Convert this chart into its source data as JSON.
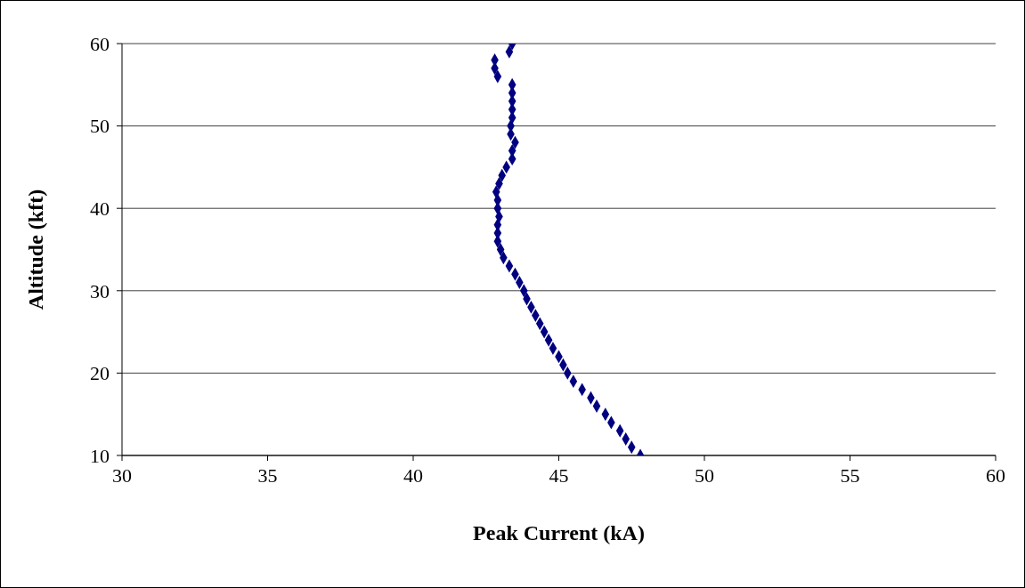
{
  "chart_data": {
    "type": "scatter",
    "xlabel": "Peak Current (kA)",
    "ylabel": "Altitude (kft)",
    "x": [
      47.8,
      47.5,
      47.3,
      47.1,
      46.8,
      46.6,
      46.3,
      46.1,
      45.8,
      45.5,
      45.3,
      45.15,
      45.0,
      44.8,
      44.65,
      44.5,
      44.35,
      44.2,
      44.05,
      43.9,
      43.8,
      43.65,
      43.5,
      43.3,
      43.1,
      43.0,
      42.9,
      42.9,
      42.9,
      42.95,
      42.9,
      42.9,
      42.85,
      42.95,
      43.05,
      43.2,
      43.4,
      43.4,
      43.5,
      43.35,
      43.35,
      43.4,
      43.4,
      43.4,
      43.4,
      43.4,
      42.9,
      42.8,
      42.8,
      43.3,
      43.4
    ],
    "values": [
      10,
      11,
      12,
      13,
      14,
      15,
      16,
      17,
      18,
      19,
      20,
      21,
      22,
      23,
      24,
      25,
      26,
      27,
      28,
      29,
      30,
      31,
      32,
      33,
      34,
      35,
      36,
      37,
      38,
      39,
      40,
      41,
      42,
      43,
      44,
      45,
      46,
      47,
      48,
      49,
      50,
      51,
      52,
      53,
      54,
      55,
      56,
      57,
      58,
      59,
      60
    ],
    "color": "#000080",
    "marker": "diamond",
    "xlim": [
      30,
      60
    ],
    "xticks": [
      30,
      35,
      40,
      45,
      50,
      55,
      60
    ],
    "ylim": [
      10,
      60
    ],
    "yticks": [
      10,
      20,
      30,
      40,
      50,
      60
    ],
    "grid": "y",
    "legend": false
  }
}
